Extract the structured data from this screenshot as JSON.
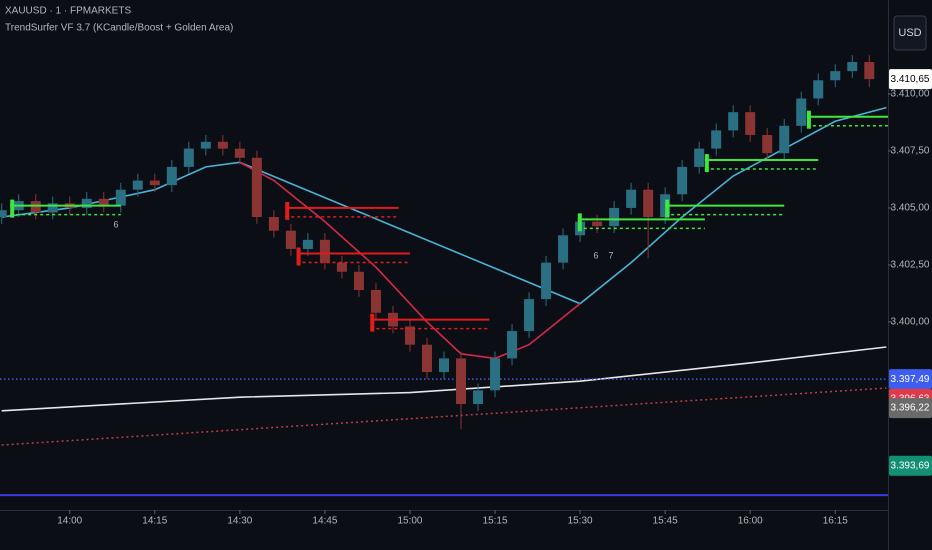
{
  "chart_data": {
    "type": "candlestick",
    "title": "XAUUSD · 1 · FPMARKETS",
    "subtitle": "TrendSurfer VF 3.7 (KCandle/Boost + Golden Area)",
    "currency": "USD",
    "up_color": "#2a6f82",
    "down_color": "#8a3434",
    "x": [
      828,
      831,
      834,
      837,
      840,
      843,
      846,
      849,
      852,
      855,
      858,
      861,
      864,
      867,
      870,
      873,
      876,
      879,
      882,
      885,
      888,
      891,
      894,
      897,
      900,
      903,
      906,
      909,
      912,
      915,
      918,
      921,
      924,
      927,
      930,
      933,
      936,
      939,
      942,
      945,
      948,
      951,
      954,
      957,
      960,
      963,
      966,
      969,
      972,
      975,
      978,
      981
    ],
    "open": [
      3404.6,
      3404.9,
      3405.3,
      3404.8,
      3405.2,
      3405.0,
      3405.4,
      3405.1,
      3405.8,
      3406.2,
      3406.0,
      3406.8,
      3407.6,
      3407.9,
      3407.6,
      3407.2,
      3404.6,
      3404.0,
      3403.2,
      3403.6,
      3402.6,
      3402.2,
      3401.4,
      3400.4,
      3399.8,
      3399.0,
      3397.8,
      3398.4,
      3396.4,
      3397.0,
      3398.4,
      3399.6,
      3401.0,
      3402.6,
      3403.8,
      3404.4,
      3404.2,
      3405.0,
      3405.8,
      3404.6,
      3405.6,
      3406.8,
      3407.6,
      3408.4,
      3409.2,
      3408.2,
      3407.4,
      3408.6,
      3409.8,
      3410.6,
      3411.0,
      3411.4
    ],
    "high": [
      3405.2,
      3405.6,
      3405.6,
      3405.5,
      3405.5,
      3405.7,
      3405.7,
      3406.1,
      3406.5,
      3406.5,
      3407.1,
      3407.9,
      3408.2,
      3408.2,
      3407.9,
      3407.5,
      3404.9,
      3404.3,
      3403.9,
      3403.9,
      3402.9,
      3402.5,
      3401.7,
      3400.7,
      3400.1,
      3399.3,
      3398.7,
      3398.7,
      3397.3,
      3398.7,
      3399.9,
      3401.3,
      3402.9,
      3404.1,
      3404.7,
      3404.7,
      3405.3,
      3406.1,
      3406.1,
      3405.9,
      3407.1,
      3407.9,
      3408.7,
      3409.5,
      3409.5,
      3408.5,
      3408.9,
      3410.1,
      3410.9,
      3411.3,
      3411.7,
      3411.7
    ],
    "low": [
      3404.3,
      3404.6,
      3404.5,
      3404.5,
      3404.7,
      3404.7,
      3404.8,
      3404.8,
      3405.5,
      3405.7,
      3405.7,
      3406.5,
      3407.3,
      3407.3,
      3406.9,
      3404.3,
      3403.7,
      3402.9,
      3402.9,
      3402.3,
      3401.9,
      3401.1,
      3400.1,
      3399.5,
      3398.7,
      3397.5,
      3397.5,
      3395.3,
      3396.1,
      3396.7,
      3398.1,
      3399.3,
      3400.7,
      3402.3,
      3403.5,
      3403.9,
      3403.9,
      3404.7,
      3402.8,
      3404.3,
      3405.3,
      3406.5,
      3407.3,
      3408.1,
      3407.9,
      3407.1,
      3407.1,
      3408.3,
      3409.5,
      3410.3,
      3410.7,
      3410.3
    ],
    "close": [
      3404.9,
      3405.3,
      3404.8,
      3405.2,
      3405.0,
      3405.4,
      3405.1,
      3405.8,
      3406.2,
      3406.0,
      3406.8,
      3407.6,
      3407.9,
      3407.6,
      3407.2,
      3404.6,
      3404.0,
      3403.2,
      3403.6,
      3402.6,
      3402.2,
      3401.4,
      3400.4,
      3399.8,
      3399.0,
      3397.8,
      3398.4,
      3396.4,
      3397.0,
      3398.4,
      3399.6,
      3401.0,
      3402.6,
      3403.8,
      3404.4,
      3404.2,
      3405.0,
      3405.8,
      3404.6,
      3405.6,
      3406.8,
      3407.6,
      3408.4,
      3409.2,
      3408.2,
      3407.4,
      3408.6,
      3409.8,
      3410.6,
      3411.0,
      3411.4,
      3410.65
    ],
    "xlim": [
      827.7,
      984.3
    ],
    "xticks": [
      {
        "value": 840,
        "label": "14:00"
      },
      {
        "value": 855,
        "label": "14:15"
      },
      {
        "value": 870,
        "label": "14:30"
      },
      {
        "value": 885,
        "label": "14:45"
      },
      {
        "value": 900,
        "label": "15:00"
      },
      {
        "value": 915,
        "label": "15:15"
      },
      {
        "value": 930,
        "label": "15:30"
      },
      {
        "value": 945,
        "label": "15:45"
      },
      {
        "value": 960,
        "label": "16:00"
      },
      {
        "value": 975,
        "label": "16:15"
      }
    ],
    "ylim": [
      3391.75,
      3414.12
    ],
    "yticks": [
      {
        "value": 3400,
        "label": "3.400,00"
      },
      {
        "value": 3402.5,
        "label": "3.402,50"
      },
      {
        "value": 3405,
        "label": "3.405,00"
      },
      {
        "value": 3407.5,
        "label": "3.407,50"
      },
      {
        "value": 3410,
        "label": "3.410,00"
      }
    ],
    "lines": [
      {
        "color": "#46b4d8",
        "dash": false,
        "x": [
          828,
          840,
          855,
          864,
          870,
          930,
          939,
          948,
          957,
          966,
          975,
          984
        ],
        "values": [
          3404.6,
          3405.0,
          3405.8,
          3406.8,
          3407.0,
          3400.8,
          3402.6,
          3404.6,
          3406.4,
          3407.6,
          3408.8,
          3409.4
        ]
      },
      {
        "color": "#d8284a",
        "dash": false,
        "x": [
          870,
          876,
          885,
          894,
          903,
          909,
          915,
          921,
          930
        ],
        "values": [
          3407.0,
          3406.2,
          3404.4,
          3402.4,
          3400.0,
          3398.6,
          3398.4,
          3399.0,
          3400.8
        ]
      },
      {
        "color": "#e6e6e6",
        "dash": false,
        "x": [
          828,
          870,
          900,
          930,
          960,
          984
        ],
        "values": [
          3396.1,
          3396.7,
          3396.9,
          3397.4,
          3398.2,
          3398.9
        ]
      },
      {
        "color": "#c23a4a",
        "dash": true,
        "x": [
          828,
          984
        ],
        "values": [
          3394.6,
          3397.1
        ]
      }
    ],
    "levels": [
      {
        "value": 3405.1,
        "x": [
          829.5,
          849
        ],
        "color": "#3ee63e"
      },
      {
        "value": 3405.0,
        "x": [
          878,
          898
        ],
        "color": "#e01c1c"
      },
      {
        "value": 3403.0,
        "x": [
          880,
          900
        ],
        "color": "#e01c1c"
      },
      {
        "value": 3400.1,
        "x": [
          893,
          914
        ],
        "color": "#e01c1c"
      },
      {
        "value": 3404.5,
        "x": [
          929.6,
          952
        ],
        "color": "#3ee63e"
      },
      {
        "value": 3405.1,
        "x": [
          945,
          966
        ],
        "color": "#3ee63e"
      },
      {
        "value": 3407.1,
        "x": [
          952,
          972
        ],
        "color": "#3ee63e"
      },
      {
        "value": 3409.0,
        "x": [
          970,
          984.3
        ],
        "color": "#3ee63e"
      },
      {
        "value": 3392.4,
        "x": [
          827.7,
          984.3
        ],
        "color": "#3a3adf"
      }
    ],
    "price_labels": [
      {
        "value": 3410.65,
        "label": "3.410,65",
        "color": "#ffffff",
        "text_color": "#000000"
      },
      {
        "value": 3397.49,
        "label": "3.397,49",
        "color": "#3d5cf0",
        "text_color": "#ffffff",
        "line_style": "dotted"
      },
      {
        "value": 3396.63,
        "label": "3.396,63",
        "color": "#e03a48",
        "text_color": "#ffffff"
      },
      {
        "value": 3396.22,
        "label": "3.396,22",
        "color": "#6a6a6a",
        "text_color": "#ffffff"
      },
      {
        "value": 3393.69,
        "label": "3.393,69",
        "color": "#138f73",
        "text_color": "#ffffff"
      }
    ],
    "annotations": [
      "6",
      "6",
      "7"
    ]
  }
}
